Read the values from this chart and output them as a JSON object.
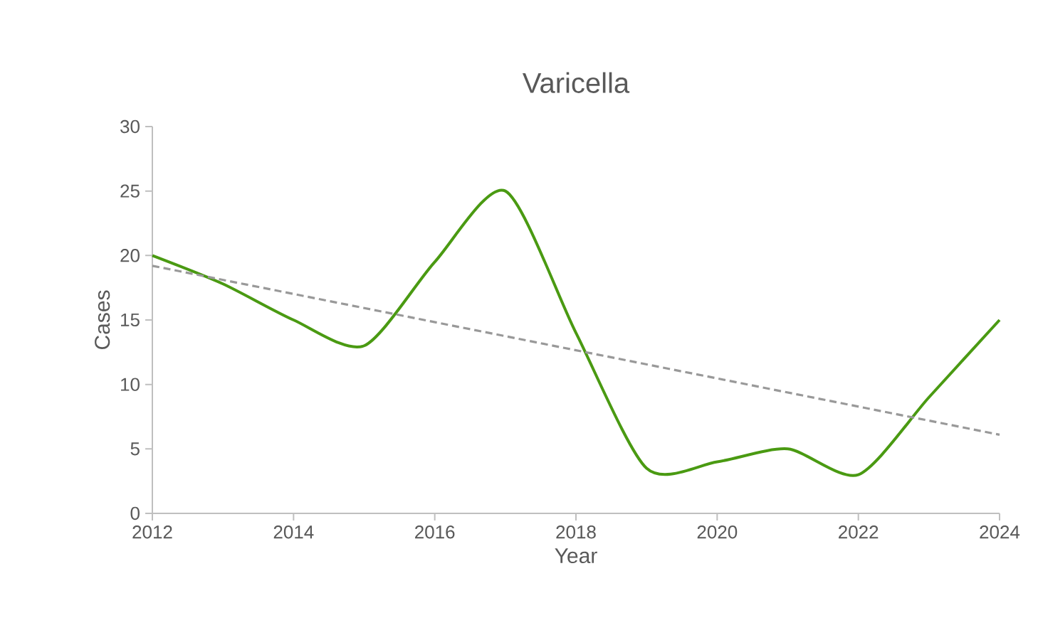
{
  "chart_data": {
    "type": "line",
    "title": "Varicella",
    "xlabel": "Year",
    "ylabel": "Cases",
    "x": [
      2012,
      2013,
      2014,
      2015,
      2016,
      2017,
      2018,
      2019,
      2020,
      2021,
      2022,
      2023,
      2024
    ],
    "series": [
      {
        "color": "#4a9a12",
        "values": [
          20,
          17.8,
          15,
          13,
          19.5,
          25,
          14,
          3.5,
          4,
          5,
          3,
          9,
          15
        ]
      },
      {
        "type": "line",
        "color": "#999999",
        "line_style": "dashed",
        "x": [
          2012,
          2024
        ],
        "values": [
          19.2,
          6.1
        ]
      }
    ],
    "xlim": [
      2012,
      2024
    ],
    "ylim": [
      0,
      30
    ],
    "xticks": [
      2012,
      2014,
      2016,
      2018,
      2020,
      2022,
      2024
    ],
    "yticks": [
      0,
      5,
      10,
      15,
      20,
      25,
      30
    ],
    "grid": false,
    "marker": "none"
  }
}
